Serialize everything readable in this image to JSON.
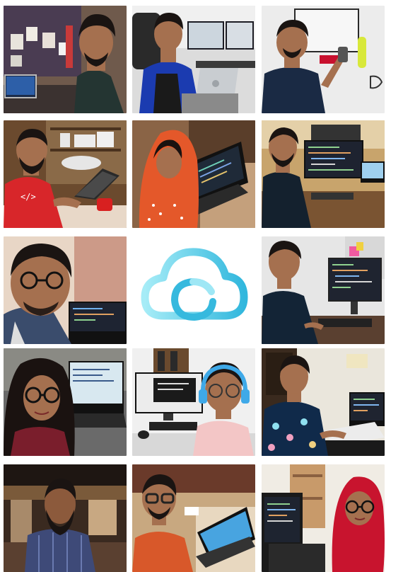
{
  "collage": {
    "columns": 3,
    "rows": 5,
    "tiles": [
      {
        "id": "r0c0",
        "subject": "man-in-dark-tshirt-with-laptop"
      },
      {
        "id": "r0c1",
        "subject": "man-in-blue-shirt-with-macbook"
      },
      {
        "id": "r0c2",
        "subject": "man-in-navy-shirt-with-monitor"
      },
      {
        "id": "r1c0",
        "subject": "man-in-red-shirt-with-laptop"
      },
      {
        "id": "r1c1",
        "subject": "woman-in-orange-hijab-with-laptop"
      },
      {
        "id": "r1c2",
        "subject": "man-at-desk-with-code-monitor"
      },
      {
        "id": "r2c0",
        "subject": "man-with-glasses-selfie-laptop"
      },
      {
        "id": "r2c1",
        "subject": "cloud-logo"
      },
      {
        "id": "r2c2",
        "subject": "man-at-monitor-with-code"
      },
      {
        "id": "r3c0",
        "subject": "woman-with-glasses-and-laptop"
      },
      {
        "id": "r3c1",
        "subject": "man-with-headphones-at-desk"
      },
      {
        "id": "r3c2",
        "subject": "man-in-floral-shirt-with-laptop"
      },
      {
        "id": "r4c0",
        "subject": "bearded-man-in-restaurant"
      },
      {
        "id": "r4c1",
        "subject": "man-with-glasses-and-laptop"
      },
      {
        "id": "r4c2",
        "subject": "woman-in-red-hijab-with-laptop"
      }
    ]
  },
  "colors": {
    "logo_light": "#9ee7f5",
    "logo_dark": "#33b8de"
  }
}
